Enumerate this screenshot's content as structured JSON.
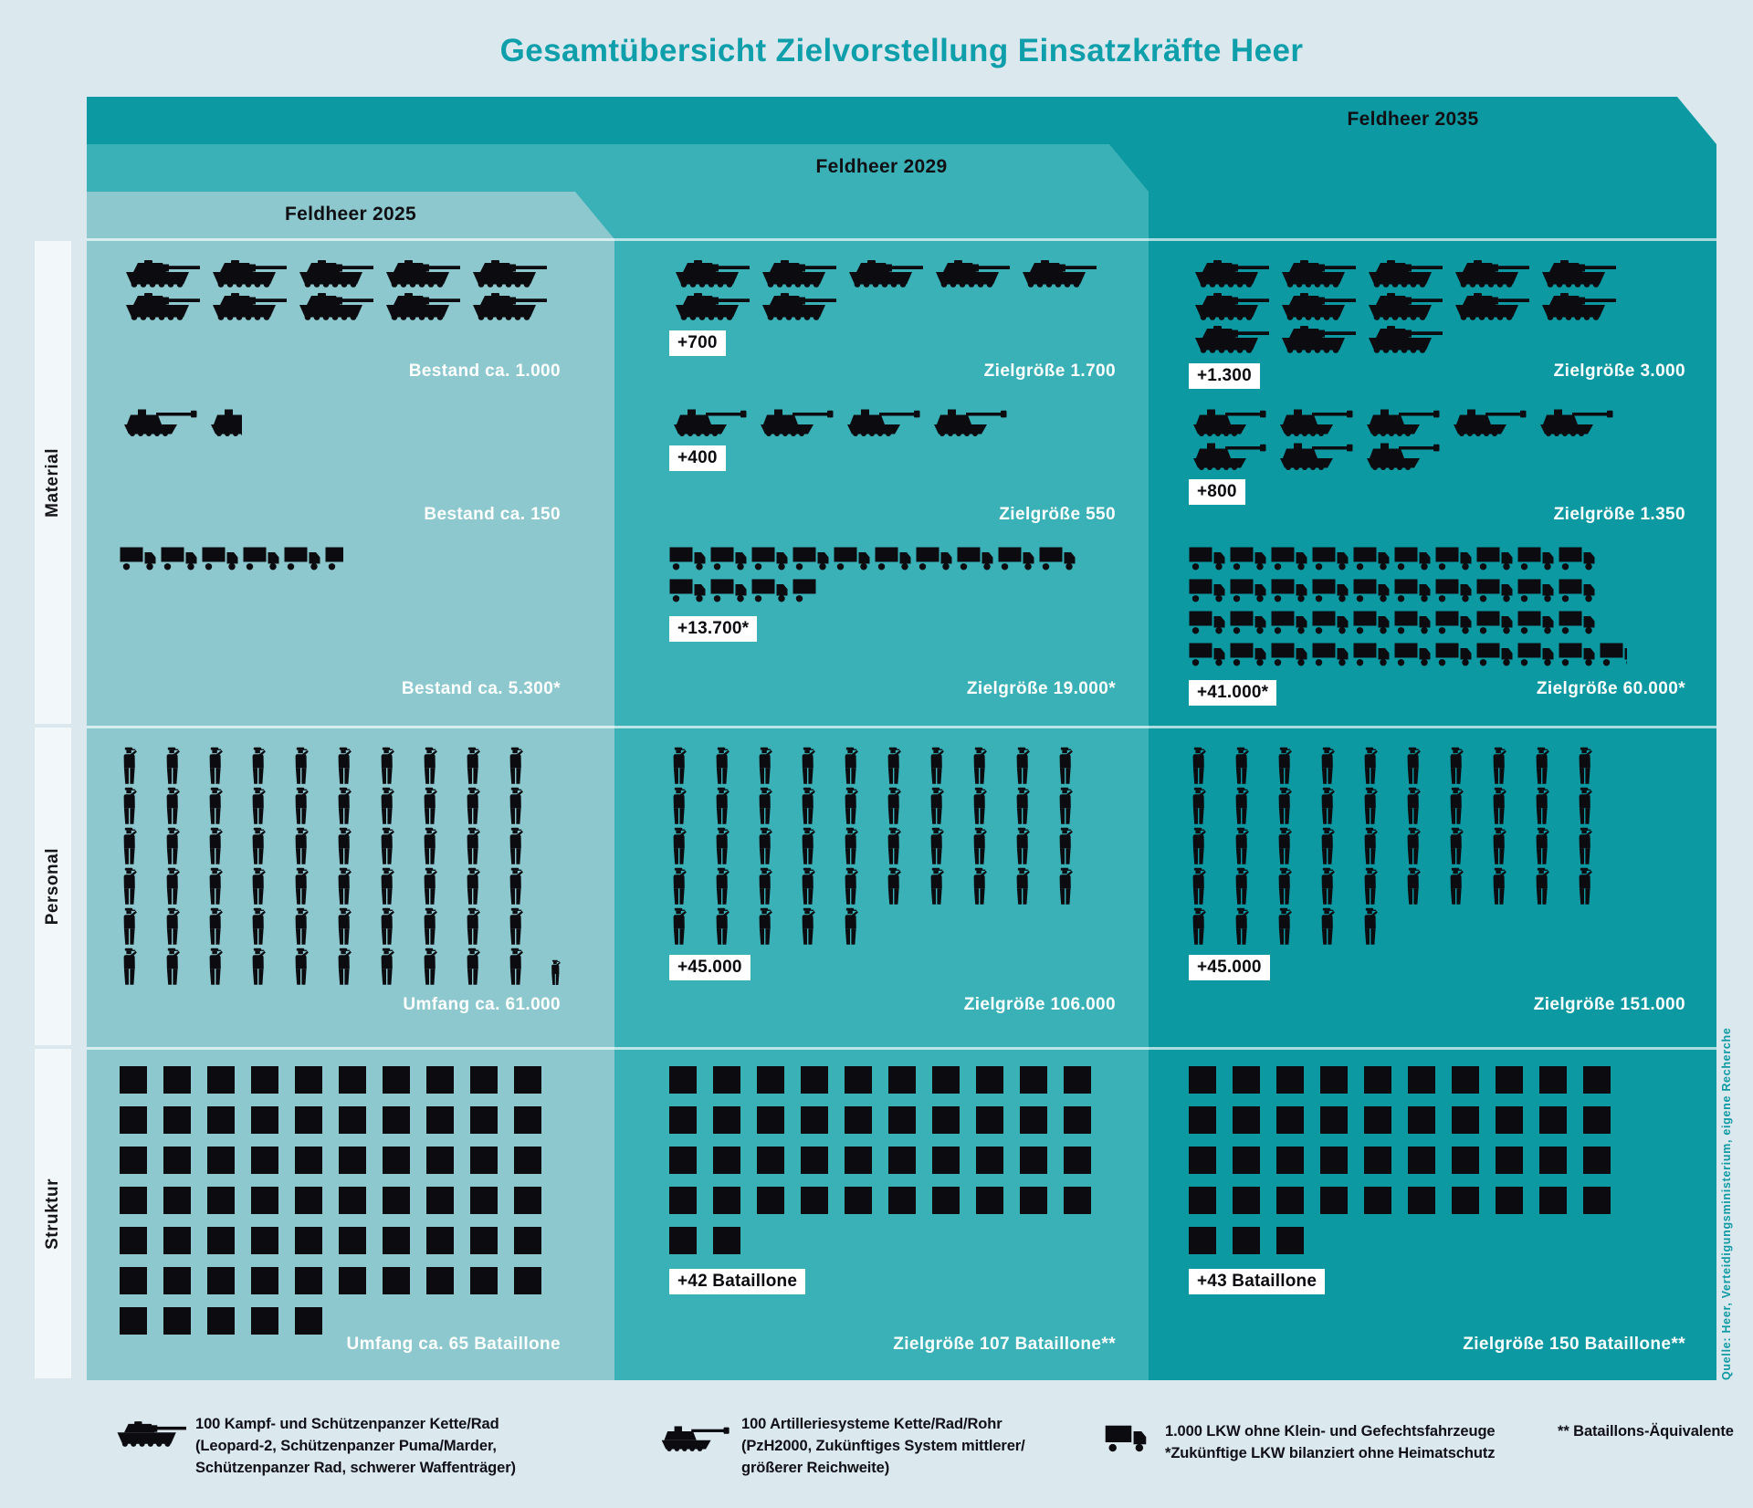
{
  "title": "Gesamtübersicht Zielvorstellung Einsatzkräfte Heer",
  "source_note": "Quelle: Heer, Verteidigungsministerium, eigene Recherche",
  "tabs": [
    {
      "label": "Feldheer 2025"
    },
    {
      "label": "Feldheer 2029"
    },
    {
      "label": "Feldheer 2035"
    }
  ],
  "row_labels": [
    {
      "label": "Material"
    },
    {
      "label": "Personal"
    },
    {
      "label": "Struktur"
    }
  ],
  "colors": {
    "page_bg": "#dbe9ef",
    "panel_2025": "#8cc8cd",
    "panel_2029": "#3ab1b6",
    "panel_2035": "#0d99a2",
    "title_accent": "#0f9fab",
    "icon": "#0b0b10",
    "value_text": "#ffffff",
    "badge_bg": "#ffffff"
  },
  "columns": [
    {
      "id": "feldheer-2025",
      "clusters": [
        {
          "type": "tank",
          "rows": [
            5,
            5
          ],
          "label": "Bestand ca. 1.000"
        },
        {
          "type": "artillery",
          "rows": [
            2
          ],
          "partial": 0.45,
          "label": "Bestand ca. 150"
        },
        {
          "type": "truck",
          "rows": [
            6
          ],
          "partial": 0.5,
          "label": "Bestand ca. 5.300*"
        },
        {
          "type": "person",
          "rows": [
            10,
            10,
            10,
            10,
            10,
            11
          ],
          "partial": "small",
          "label": "Umfang ca. 61.000"
        },
        {
          "type": "square",
          "rows": [
            10,
            10,
            10,
            10,
            10,
            10,
            5
          ],
          "label": "Umfang ca. 65 Bataillone"
        }
      ]
    },
    {
      "id": "feldheer-2029",
      "clusters": [
        {
          "type": "tank",
          "rows": [
            5,
            2
          ],
          "badge": "+700",
          "label": "Zielgröße 1.700"
        },
        {
          "type": "artillery",
          "rows": [
            4
          ],
          "badge": "+400",
          "label": "Zielgröße 550"
        },
        {
          "type": "truck",
          "rows": [
            10,
            4
          ],
          "partial": 0.65,
          "badge": "+13.700*",
          "label": "Zielgröße 19.000*"
        },
        {
          "type": "person",
          "rows": [
            10,
            10,
            10,
            10,
            5
          ],
          "badge": "+45.000",
          "label": "Zielgröße 106.000"
        },
        {
          "type": "square",
          "rows": [
            10,
            10,
            10,
            10,
            2
          ],
          "badge": "+42 Bataillone",
          "label": "Zielgröße 107 Bataillone**"
        }
      ]
    },
    {
      "id": "feldheer-2035",
      "clusters": [
        {
          "type": "tank",
          "rows": [
            5,
            5,
            3
          ],
          "badge": "+1.300",
          "label": "Zielgröße 3.000"
        },
        {
          "type": "artillery",
          "rows": [
            5,
            3
          ],
          "badge": "+800",
          "label": "Zielgröße 1.350"
        },
        {
          "type": "truck",
          "rows": [
            10,
            10,
            10,
            11
          ],
          "partial": 0.75,
          "badge": "+41.000*",
          "label": "Zielgröße 60.000*"
        },
        {
          "type": "person",
          "rows": [
            10,
            10,
            10,
            10,
            5
          ],
          "badge": "+45.000",
          "label": "Zielgröße 151.000"
        },
        {
          "type": "square",
          "rows": [
            10,
            10,
            10,
            10,
            3
          ],
          "badge": "+43 Bataillone",
          "label": "Zielgröße 150 Bataillone**"
        }
      ]
    }
  ],
  "legend": [
    {
      "icon": "tank-icon",
      "lines": [
        "100 Kampf- und Schützenpanzer Kette/Rad",
        "(Leopard-2, Schützenpanzer Puma/Marder,",
        "Schützenpanzer Rad, schwerer Waffenträger)"
      ]
    },
    {
      "icon": "artillery-icon",
      "lines": [
        "100 Artilleriesysteme Kette/Rad/Rohr",
        "(PzH2000, Zukünftiges System mittlerer/",
        "größerer Reichweite)"
      ]
    },
    {
      "icon": "truck-icon",
      "lines": [
        "1.000 LKW ohne Klein- und Gefechtsfahrzeuge",
        "*Zukünftige LKW bilanziert ohne Heimatschutz"
      ]
    },
    {
      "icon": null,
      "lines": [
        "** Bataillons-Äquivalente"
      ]
    }
  ],
  "chart_data": {
    "type": "table",
    "variant": "pictogram",
    "title": "Gesamtübersicht Zielvorstellung Einsatzkräfte Heer",
    "categories": [
      "Feldheer 2025",
      "Feldheer 2029",
      "Feldheer 2035"
    ],
    "series": [
      {
        "name": "Kampf- und Schützenpanzer",
        "values": [
          1000,
          1700,
          3000
        ],
        "deltas": [
          null,
          700,
          1300
        ],
        "labels": [
          "Bestand ca. 1.000",
          "Zielgröße 1.700",
          "Zielgröße 3.000"
        ]
      },
      {
        "name": "Artilleriesysteme",
        "values": [
          150,
          550,
          1350
        ],
        "deltas": [
          null,
          400,
          800
        ],
        "labels": [
          "Bestand ca. 150",
          "Zielgröße 550",
          "Zielgröße 1.350"
        ]
      },
      {
        "name": "LKW",
        "values": [
          5300,
          19000,
          60000
        ],
        "deltas": [
          null,
          13700,
          41000
        ],
        "labels": [
          "Bestand ca. 5.300*",
          "Zielgröße 19.000*",
          "Zielgröße 60.000*"
        ]
      },
      {
        "name": "Personal",
        "values": [
          61000,
          106000,
          151000
        ],
        "deltas": [
          null,
          45000,
          45000
        ],
        "labels": [
          "Umfang ca. 61.000",
          "Zielgröße 106.000",
          "Zielgröße 151.000"
        ]
      },
      {
        "name": "Bataillone",
        "values": [
          65,
          107,
          150
        ],
        "deltas": [
          null,
          42,
          43
        ],
        "labels": [
          "Umfang ca. 65 Bataillone",
          "Zielgröße 107 Bataillone**",
          "Zielgröße 150 Bataillone**"
        ]
      }
    ],
    "icon_units": {
      "tank": 100,
      "artillery": 100,
      "truck": 1000,
      "person": 1000,
      "square": 1
    },
    "legend_position": "bottom",
    "grid": false
  }
}
